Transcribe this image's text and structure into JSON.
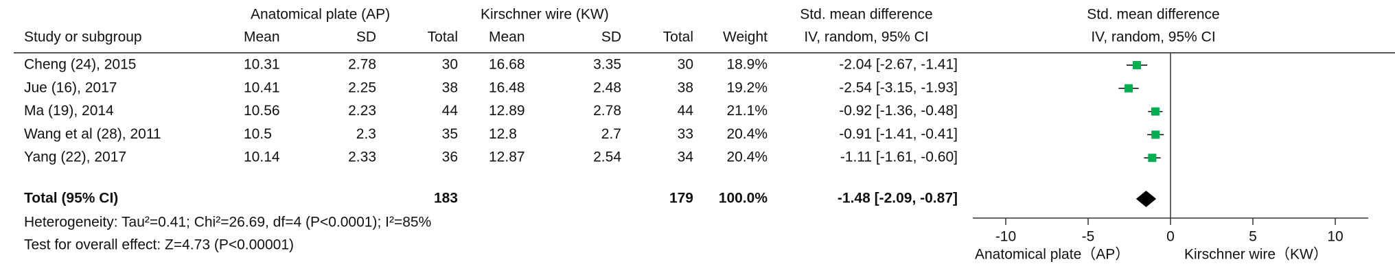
{
  "chart_data": {
    "type": "forest",
    "group_headers": [
      "Anatomical plate (AP)",
      "Kirschner wire (KW)"
    ],
    "columns": [
      "Study or subgroup",
      "Mean",
      "SD",
      "Total",
      "Mean",
      "SD",
      "Total",
      "Weight"
    ],
    "effect_header": [
      "Std. mean difference",
      "IV, random, 95% CI"
    ],
    "rows": [
      {
        "study": "Cheng (24), 2015",
        "cells": [
          10.31,
          2.78,
          30,
          16.68,
          3.35,
          30,
          "18.9%"
        ],
        "ci_label": "-2.04 [-2.67, -1.41]",
        "smd": -2.04,
        "ci": [
          -2.67,
          -1.41
        ]
      },
      {
        "study": "Jue (16), 2017",
        "cells": [
          10.41,
          2.25,
          38,
          16.48,
          2.48,
          38,
          "19.2%"
        ],
        "ci_label": "-2.54 [-3.15, -1.93]",
        "smd": -2.54,
        "ci": [
          -3.15,
          -1.93
        ]
      },
      {
        "study": "Ma (19), 2014",
        "cells": [
          10.56,
          2.23,
          44,
          12.89,
          2.78,
          44,
          "21.1%"
        ],
        "ci_label": "-0.92 [-1.36, -0.48]",
        "smd": -0.92,
        "ci": [
          -1.36,
          -0.48
        ]
      },
      {
        "study": "Wang et al (28), 2011",
        "cells": [
          10.5,
          2.3,
          35,
          12.8,
          2.7,
          33,
          "20.4%"
        ],
        "ci_label": "-0.91 [-1.41, -0.41]",
        "smd": -0.91,
        "ci": [
          -1.41,
          -0.41
        ]
      },
      {
        "study": "Yang (22), 2017",
        "cells": [
          10.14,
          2.33,
          36,
          12.87,
          2.54,
          34,
          "20.4%"
        ],
        "ci_label": "-1.11 [-1.61, -0.60]",
        "smd": -1.11,
        "ci": [
          -1.61,
          -0.6
        ]
      }
    ],
    "total": {
      "study": "Total (95% CI)",
      "cells": [
        null,
        null,
        183,
        null,
        null,
        179,
        "100.0%"
      ],
      "ci_label": "-1.48 [-2.09, -0.87]",
      "smd": -1.48,
      "ci": [
        -2.09,
        -0.87
      ]
    },
    "heterogeneity": "Heterogeneity: Tau²=0.41; Chi²=26.69, df=4 (P<0.0001); I²=85%",
    "overall_effect": "Test for overall effect: Z=4.73 (P<0.00001)",
    "xlim": [
      -12,
      12
    ],
    "xticks": [
      -10,
      -5,
      0,
      5,
      10
    ],
    "axis_labels": [
      "Anatomical plate（AP）",
      "Kirschner wire（KW）"
    ],
    "marker_color": "#00b050"
  }
}
